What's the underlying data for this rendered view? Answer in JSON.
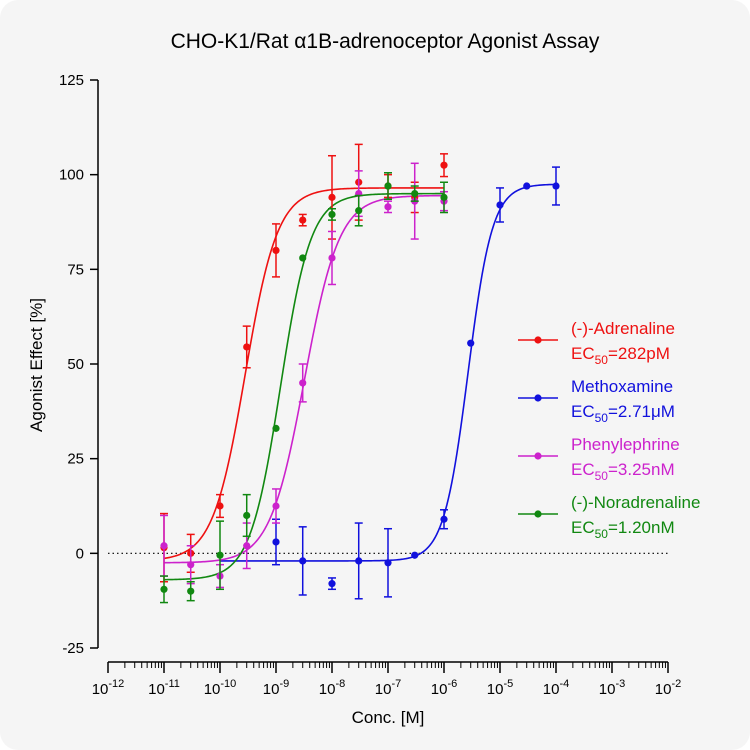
{
  "chart_data": {
    "type": "scatter",
    "title": "CHO-K1/Rat α1B-adrenoceptor Agonist Assay",
    "xlabel": "Conc. [M]",
    "ylabel": "Agonist Effect [%]",
    "xscale": "log",
    "xlim": [
      1e-12,
      0.01
    ],
    "ylim": [
      -25,
      125
    ],
    "x_ticks": [
      "10-12",
      "10-11",
      "10-10",
      "10-9",
      "10-8",
      "10-7",
      "10-6",
      "10-5",
      "10-4",
      "10-3",
      "10-2"
    ],
    "x_tick_values": [
      1e-12,
      1e-11,
      1e-10,
      1e-09,
      1e-08,
      1e-07,
      1e-06,
      1e-05,
      0.0001,
      0.001,
      0.01
    ],
    "y_ticks": [
      -25,
      0,
      25,
      50,
      75,
      100,
      125
    ],
    "baseline": 0,
    "legend_position": "right",
    "series": [
      {
        "name": "(-)-Adrenaline",
        "ec50_label": "EC50=282pM",
        "ec50_prefix": "EC",
        "ec50_sub": "50",
        "ec50_value": "=282pM",
        "color": "#ee1111",
        "fit": {
          "bottom": -2,
          "top": 96.5,
          "log_ec50": -9.55,
          "hill": 1.5,
          "x_range": [
            1e-11,
            1e-06
          ]
        },
        "x": [
          1e-11,
          3e-11,
          1e-10,
          3e-10,
          1e-09,
          3e-09,
          1e-08,
          3e-08,
          1e-07,
          3e-07,
          1e-06
        ],
        "y": [
          1.5,
          0,
          12.5,
          54.5,
          80,
          88,
          94,
          98,
          97,
          94,
          102.5
        ],
        "err": [
          9,
          5,
          3,
          5.5,
          7,
          1.5,
          11,
          10,
          3,
          4,
          3
        ]
      },
      {
        "name": "Methoxamine",
        "ec50_label": "EC50=2.71μM",
        "ec50_prefix": "EC",
        "ec50_sub": "50",
        "ec50_value": "=2.71μM",
        "color": "#1111dd",
        "fit": {
          "bottom": -2,
          "top": 97.5,
          "log_ec50": -5.57,
          "hill": 2.0,
          "x_range": [
            1e-10,
            0.0001
          ]
        },
        "x": [
          1e-09,
          3e-09,
          1e-08,
          3e-08,
          1e-07,
          3e-07,
          1e-06,
          3e-06,
          1e-05,
          3e-05,
          0.0001
        ],
        "y": [
          3,
          -2,
          -8,
          -2,
          -2.5,
          -0.5,
          9,
          55.5,
          92,
          97,
          97
        ],
        "err": [
          6,
          9,
          1.5,
          10,
          9,
          0,
          2.5,
          0,
          4.5,
          0,
          5
        ]
      },
      {
        "name": "Phenylephrine",
        "ec50_label": "EC50=3.25nM",
        "ec50_prefix": "EC",
        "ec50_sub": "50",
        "ec50_value": "=3.25nM",
        "color": "#cc22cc",
        "fit": {
          "bottom": -2.5,
          "top": 94.5,
          "log_ec50": -8.49,
          "hill": 1.4,
          "x_range": [
            1e-11,
            1e-06
          ]
        },
        "x": [
          1e-11,
          3e-11,
          1e-10,
          3e-10,
          1e-09,
          3e-09,
          1e-08,
          3e-08,
          1e-07,
          3e-07,
          1e-06
        ],
        "y": [
          2,
          -3,
          -6,
          2,
          12.5,
          45,
          78,
          95,
          91.5,
          93,
          93
        ],
        "err": [
          8,
          5,
          3,
          6,
          4.5,
          5,
          7,
          6,
          1.5,
          10,
          2.5
        ]
      },
      {
        "name": "(-)-Noradrenaline",
        "ec50_label": "EC50=1.20nM",
        "ec50_prefix": "EC",
        "ec50_sub": "50",
        "ec50_value": "=1.20nM",
        "color": "#118811",
        "fit": {
          "bottom": -7,
          "top": 95,
          "log_ec50": -8.92,
          "hill": 1.6,
          "x_range": [
            1e-11,
            1e-06
          ]
        },
        "x": [
          1e-11,
          3e-11,
          1e-10,
          3e-10,
          1e-09,
          3e-09,
          1e-08,
          3e-08,
          1e-07,
          3e-07,
          1e-06
        ],
        "y": [
          -9.5,
          -10,
          -0.5,
          10,
          33,
          78,
          89.5,
          90.5,
          97,
          95,
          94
        ],
        "err": [
          3.5,
          2.5,
          9,
          5.5,
          0,
          0,
          1.5,
          4,
          3.5,
          2,
          4
        ]
      }
    ]
  }
}
